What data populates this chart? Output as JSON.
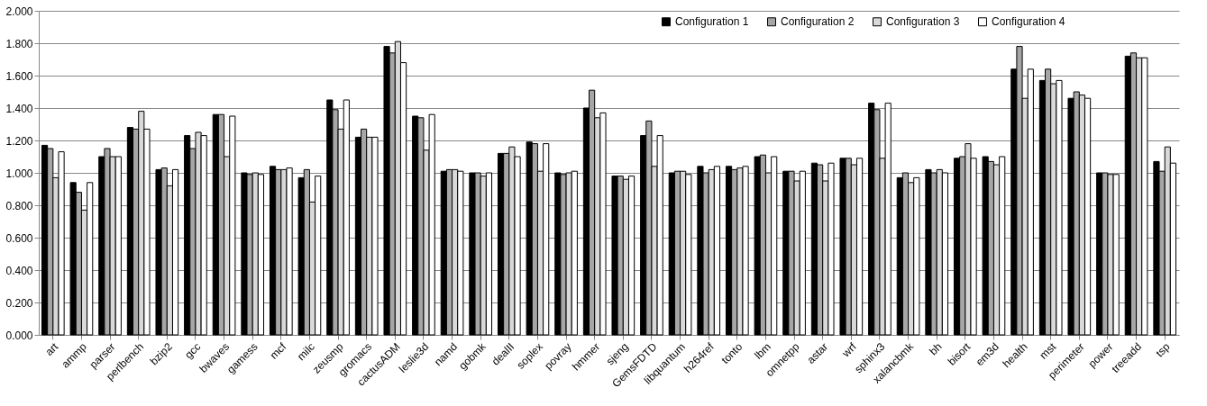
{
  "chart_data": {
    "type": "bar",
    "categories": [
      "art",
      "ammp",
      "parser",
      "perlbench",
      "bzip2",
      "gcc",
      "bwaves",
      "gamess",
      "mcf",
      "milc",
      "zeusmp",
      "gromacs",
      "cactusADM",
      "leslie3d",
      "namd",
      "gobmk",
      "dealII",
      "soplex",
      "povray",
      "hmmer",
      "sjeng",
      "GemsFDTD",
      "libquantum",
      "h264ref",
      "tonto",
      "lbm",
      "omnetpp",
      "astar",
      "wrf",
      "sphinx3",
      "xalancbmk",
      "bh",
      "bisort",
      "em3d",
      "health",
      "mst",
      "perimeter",
      "power",
      "treeadd",
      "tsp"
    ],
    "series": [
      {
        "name": "Configuration 1",
        "color": "#000000",
        "values": [
          1.17,
          0.94,
          1.1,
          1.28,
          1.02,
          1.23,
          1.36,
          1.0,
          1.04,
          0.97,
          1.45,
          1.22,
          1.78,
          1.35,
          1.01,
          1.0,
          1.12,
          1.19,
          1.0,
          1.4,
          0.98,
          1.23,
          1.0,
          1.04,
          1.04,
          1.1,
          1.01,
          1.06,
          1.09,
          1.43,
          0.97,
          1.02,
          1.09,
          1.1,
          1.64,
          1.57,
          1.46,
          1.0,
          1.72,
          1.07
        ]
      },
      {
        "name": "Configuration 2",
        "color": "#a6a6a6",
        "values": [
          1.15,
          0.88,
          1.15,
          1.27,
          1.03,
          1.15,
          1.36,
          0.99,
          1.02,
          1.02,
          1.39,
          1.27,
          1.74,
          1.34,
          1.02,
          1.0,
          1.12,
          1.18,
          0.99,
          1.51,
          0.98,
          1.32,
          1.01,
          1.0,
          1.02,
          1.11,
          1.01,
          1.05,
          1.09,
          1.39,
          1.0,
          1.0,
          1.1,
          1.07,
          1.78,
          1.64,
          1.5,
          1.0,
          1.74,
          1.01
        ]
      },
      {
        "name": "Configuration 3",
        "color": "#d9d9d9",
        "values": [
          0.97,
          0.77,
          1.1,
          1.38,
          0.92,
          1.25,
          1.1,
          1.0,
          1.02,
          0.82,
          1.27,
          1.22,
          1.81,
          1.14,
          1.02,
          0.98,
          1.16,
          1.01,
          1.0,
          1.34,
          0.96,
          1.04,
          1.01,
          1.02,
          1.03,
          1.0,
          0.95,
          0.95,
          1.05,
          1.09,
          0.94,
          1.02,
          1.18,
          1.05,
          1.46,
          1.55,
          1.48,
          0.99,
          1.71,
          1.16
        ]
      },
      {
        "name": "Configuration 4",
        "color": "#ffffff",
        "values": [
          1.13,
          0.94,
          1.1,
          1.27,
          1.02,
          1.23,
          1.35,
          0.99,
          1.03,
          0.98,
          1.45,
          1.22,
          1.68,
          1.36,
          1.01,
          1.0,
          1.1,
          1.18,
          1.01,
          1.37,
          0.98,
          1.23,
          0.99,
          1.04,
          1.04,
          1.1,
          1.01,
          1.06,
          1.09,
          1.43,
          0.97,
          1.0,
          1.09,
          1.1,
          1.64,
          1.57,
          1.46,
          0.99,
          1.71,
          1.06
        ]
      }
    ],
    "ylim": [
      0,
      2
    ],
    "yticks": [
      {
        "value": 0,
        "label": "0.000"
      },
      {
        "value": 0.2,
        "label": "0.200"
      },
      {
        "value": 0.4,
        "label": "0.400"
      },
      {
        "value": 0.6,
        "label": "0.600"
      },
      {
        "value": 0.8,
        "label": "0.800"
      },
      {
        "value": 1,
        "label": "1.000"
      },
      {
        "value": 1.2,
        "label": "1.200"
      },
      {
        "value": 1.4,
        "label": "1.400"
      },
      {
        "value": 1.6,
        "label": "1.600"
      },
      {
        "value": 1.8,
        "label": "1.800"
      },
      {
        "value": 2,
        "label": "2.000"
      }
    ],
    "grid": "y",
    "legend": "top right"
  }
}
